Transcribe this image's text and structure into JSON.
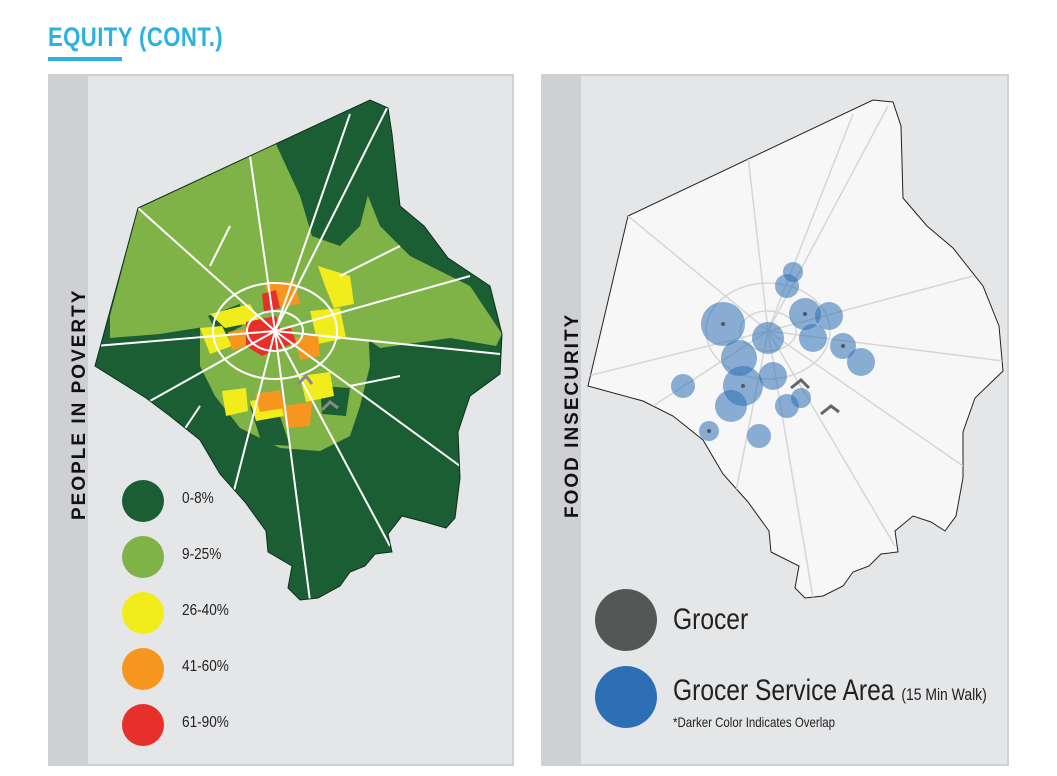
{
  "header": {
    "title_primary": "EQUITY",
    "title_secondary": " (CONT.)",
    "accent_color": "#2bb3e0"
  },
  "left_panel": {
    "side_label": "PEOPLE IN POVERTY",
    "legend": [
      {
        "label": "0-8%",
        "color": "#1b5e34"
      },
      {
        "label": "9-25%",
        "color": "#7fb347"
      },
      {
        "label": "26-40%",
        "color": "#f2ec1d"
      },
      {
        "label": "41-60%",
        "color": "#f6961f"
      },
      {
        "label": "61-90%",
        "color": "#e8302a"
      }
    ]
  },
  "right_panel": {
    "side_label": "FOOD INSECURITY",
    "legend": [
      {
        "label": "Grocer",
        "color": "#555757"
      },
      {
        "label": "Grocer Service Area",
        "suffix": "(15 Min Walk)",
        "note": "*Darker Color Indicates Overlap",
        "color": "#2d6fb5"
      }
    ]
  }
}
